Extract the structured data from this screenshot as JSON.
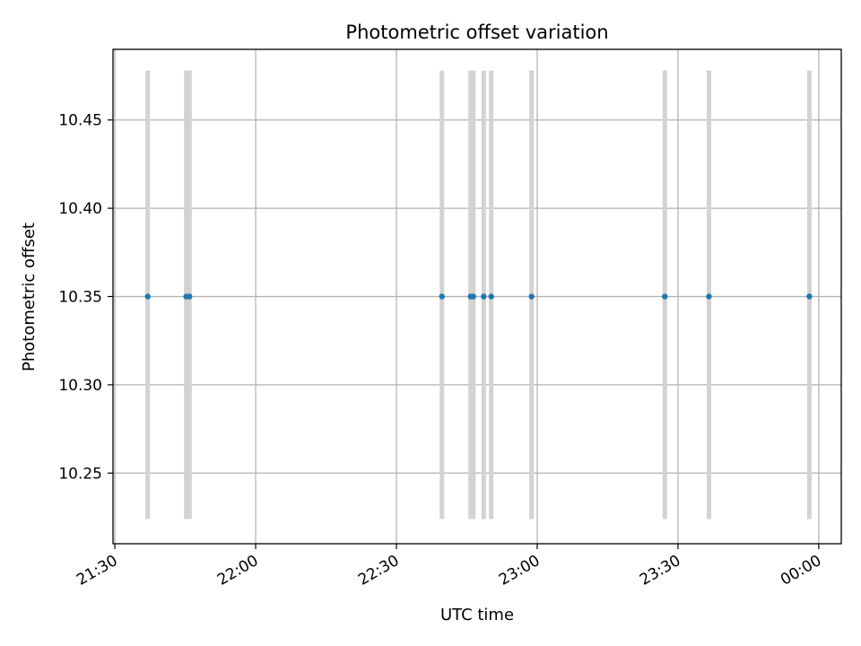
{
  "chart_data": {
    "type": "scatter",
    "title": "Photometric offset variation",
    "xlabel": "UTC time",
    "ylabel": "Photometric offset",
    "x_tick_labels": [
      "21:30",
      "22:00",
      "22:30",
      "23:00",
      "23:30",
      "00:00"
    ],
    "y_tick_labels": [
      "10.25",
      "10.30",
      "10.35",
      "10.40",
      "10.45"
    ],
    "y_ticks": [
      10.25,
      10.3,
      10.35,
      10.4,
      10.45
    ],
    "ylim": [
      10.21,
      10.49
    ],
    "xlim": [
      "21:29:36",
      "00:04:48"
    ],
    "grid": true,
    "points": [
      {
        "x": "21:37:00",
        "y": 10.35,
        "yerr_low": 10.224,
        "yerr_high": 10.478
      },
      {
        "x": "21:45:12",
        "y": 10.35,
        "yerr_low": 10.224,
        "yerr_high": 10.478
      },
      {
        "x": "21:45:54",
        "y": 10.35,
        "yerr_low": 10.224,
        "yerr_high": 10.478
      },
      {
        "x": "22:39:42",
        "y": 10.35,
        "yerr_low": 10.224,
        "yerr_high": 10.478
      },
      {
        "x": "22:45:48",
        "y": 10.35,
        "yerr_low": 10.224,
        "yerr_high": 10.478
      },
      {
        "x": "22:46:24",
        "y": 10.35,
        "yerr_low": 10.224,
        "yerr_high": 10.478
      },
      {
        "x": "22:48:36",
        "y": 10.35,
        "yerr_low": 10.224,
        "yerr_high": 10.478
      },
      {
        "x": "22:50:12",
        "y": 10.35,
        "yerr_low": 10.224,
        "yerr_high": 10.478
      },
      {
        "x": "22:58:48",
        "y": 10.35,
        "yerr_low": 10.224,
        "yerr_high": 10.478
      },
      {
        "x": "23:27:12",
        "y": 10.35,
        "yerr_low": 10.224,
        "yerr_high": 10.478
      },
      {
        "x": "23:36:36",
        "y": 10.35,
        "yerr_low": 10.224,
        "yerr_high": 10.478
      },
      {
        "x": "23:58:00",
        "y": 10.35,
        "yerr_low": 10.224,
        "yerr_high": 10.478
      }
    ],
    "colors": {
      "point": "#1f77b4",
      "errorbar": "#d3d3d3",
      "grid": "#b0b0b0",
      "axis": "#000000"
    }
  }
}
